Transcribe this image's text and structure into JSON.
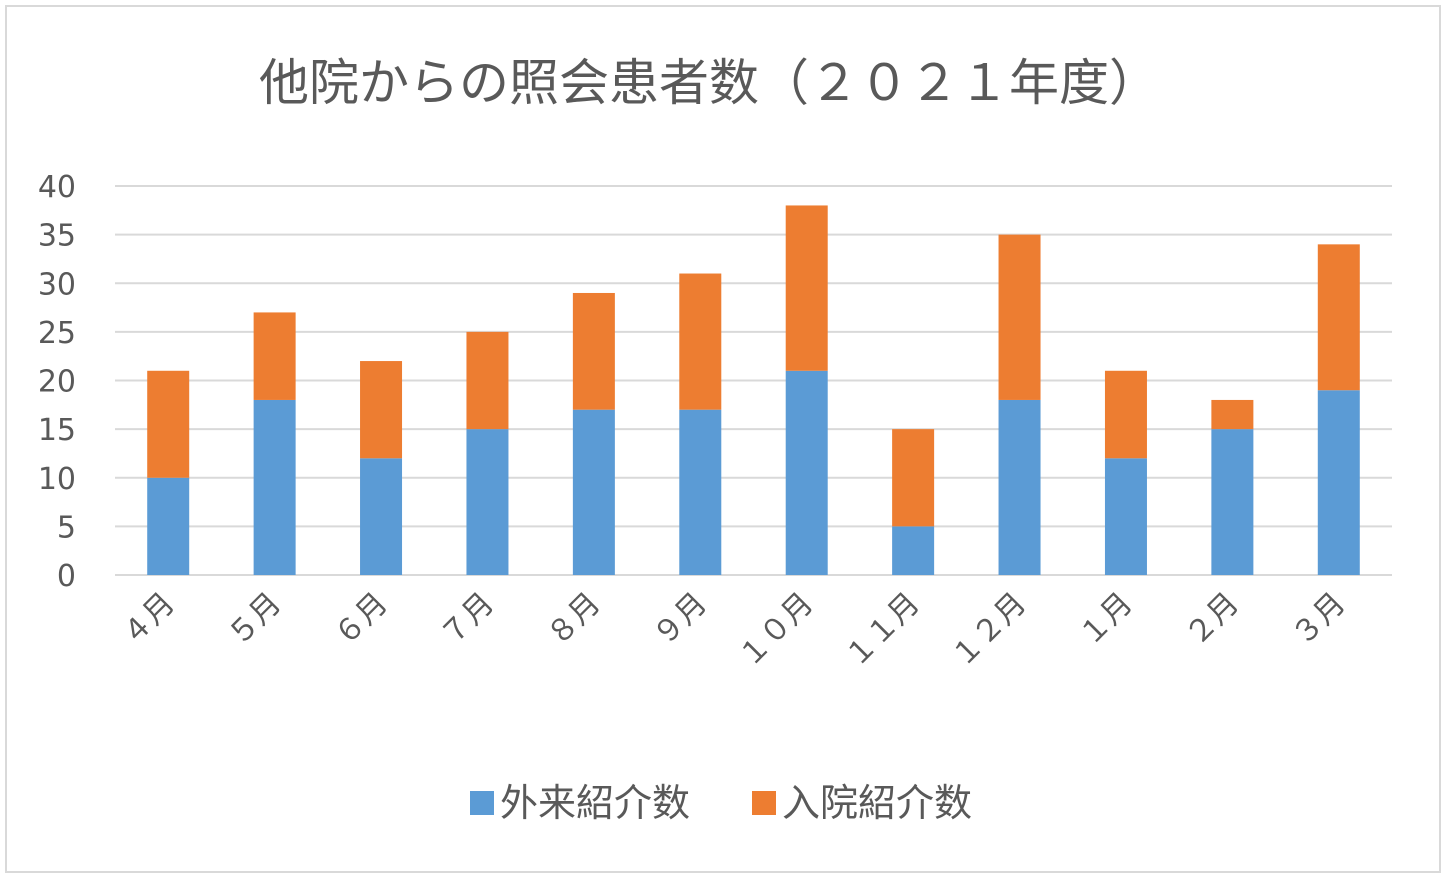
{
  "chart_data": {
    "type": "bar",
    "stacked": true,
    "title": "他院からの照会患者数（２０２１年度）",
    "xlabel": "",
    "ylabel": "",
    "categories": [
      "４月",
      "５月",
      "６月",
      "７月",
      "８月",
      "９月",
      "１０月",
      "１１月",
      "１２月",
      "１月",
      "２月",
      "３月"
    ],
    "series": [
      {
        "name": "外来紹介数",
        "color": "#5b9bd5",
        "values": [
          10,
          18,
          12,
          15,
          17,
          17,
          21,
          5,
          18,
          12,
          15,
          19
        ]
      },
      {
        "name": "入院紹介数",
        "color": "#ed7d31",
        "values": [
          11,
          9,
          10,
          10,
          12,
          14,
          17,
          10,
          17,
          9,
          3,
          15
        ]
      }
    ],
    "ylim": [
      0,
      40
    ],
    "yticks": [
      0,
      5,
      10,
      15,
      20,
      25,
      30,
      35,
      40
    ],
    "grid": true,
    "gridColor": "#d9d9d9",
    "legend_position": "bottom"
  }
}
